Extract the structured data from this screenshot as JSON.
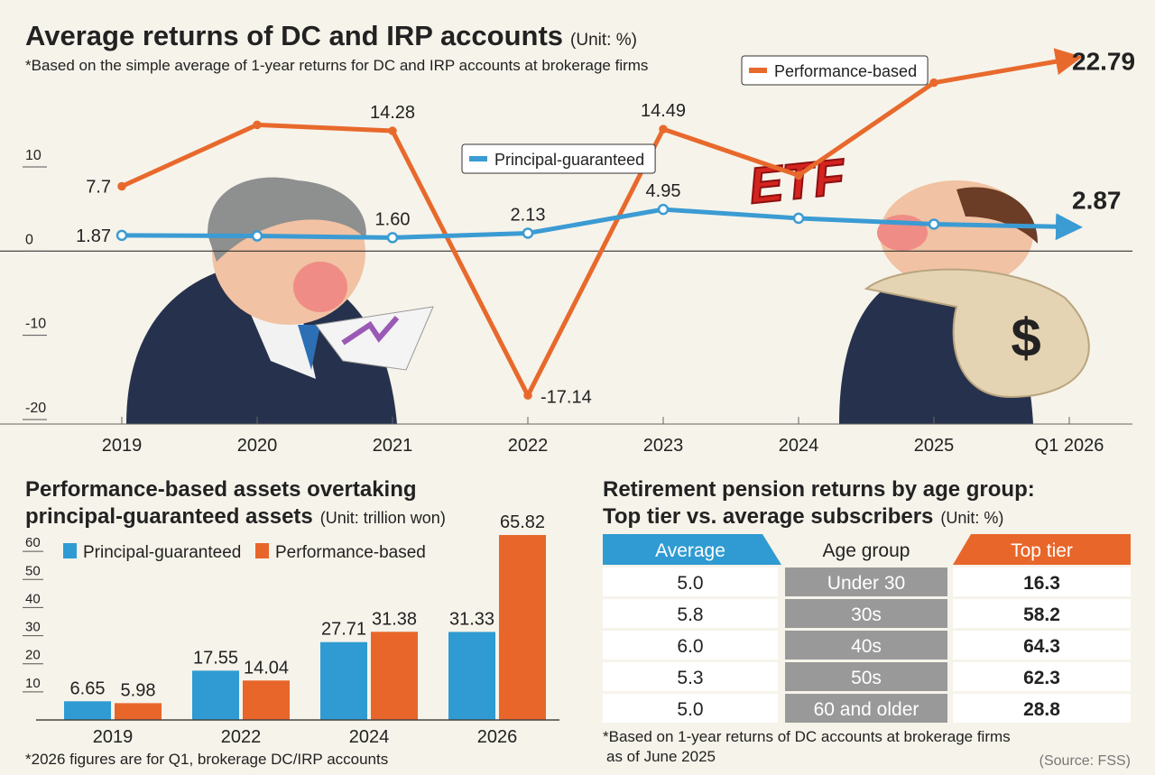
{
  "chart_data": [
    {
      "type": "line",
      "title": "Average returns of DC and IRP accounts",
      "unit": "(Unit: %)",
      "subtitle": "*Based on the simple average of 1-year returns for DC and IRP accounts at brokerage firms",
      "categories": [
        "2019",
        "2020",
        "2021",
        "2022",
        "2023",
        "2024",
        "2025",
        "Q1 2026"
      ],
      "series": [
        {
          "name": "Performance-based",
          "color": "#e8692c",
          "values": [
            7.7,
            15,
            14.28,
            -17.14,
            14.49,
            9,
            20,
            22.79
          ],
          "value_labels": [
            "7.7",
            null,
            "14.28",
            "-17.14",
            "14.49",
            null,
            null,
            "22.79"
          ]
        },
        {
          "name": "Principal-guaranteed",
          "color": "#3b9bd3",
          "values": [
            1.87,
            1.8,
            1.6,
            2.13,
            4.95,
            3.9,
            3.2,
            2.87
          ],
          "value_labels": [
            "1.87",
            null,
            "1.60",
            "2.13",
            "4.95",
            null,
            null,
            "2.87"
          ]
        }
      ],
      "ylim": [
        -20,
        25
      ],
      "yticks": [
        -20,
        -10,
        0,
        10
      ],
      "annotation": "ETF",
      "illustration_symbol": "$"
    },
    {
      "type": "bar",
      "title_lines": [
        "Performance-based assets overtaking",
        "principal-guaranteed assets"
      ],
      "unit": "(Unit: trillion won)",
      "categories": [
        "2019",
        "2022",
        "2024",
        "2026"
      ],
      "series": [
        {
          "name": "Principal-guaranteed",
          "color": "#2f9bd2",
          "values": [
            6.65,
            17.55,
            27.71,
            31.33
          ]
        },
        {
          "name": "Performance-based",
          "color": "#e8662a",
          "values": [
            5.98,
            14.04,
            31.38,
            65.82
          ]
        }
      ],
      "ylim": [
        0,
        70
      ],
      "yticks": [
        10,
        20,
        30,
        40,
        50,
        60
      ],
      "note": "*2026 figures are for Q1, brokerage DC/IRP accounts"
    }
  ],
  "table": {
    "title_lines": [
      "Retirement pension returns by age group:",
      "Top tier vs. average subscribers"
    ],
    "unit": "(Unit: %)",
    "header": [
      "Average",
      "Age group",
      "Top tier"
    ],
    "rows": [
      [
        "5.0",
        "Under 30",
        "16.3"
      ],
      [
        "5.8",
        "30s",
        "58.2"
      ],
      [
        "6.0",
        "40s",
        "64.3"
      ],
      [
        "5.3",
        "50s",
        "62.3"
      ],
      [
        "5.0",
        "60 and older",
        "28.8"
      ]
    ],
    "note_lines": [
      "*Based on 1-year returns of DC accounts at brokerage firms",
      "as of June 2025"
    ],
    "source": "(Source: FSS)"
  }
}
